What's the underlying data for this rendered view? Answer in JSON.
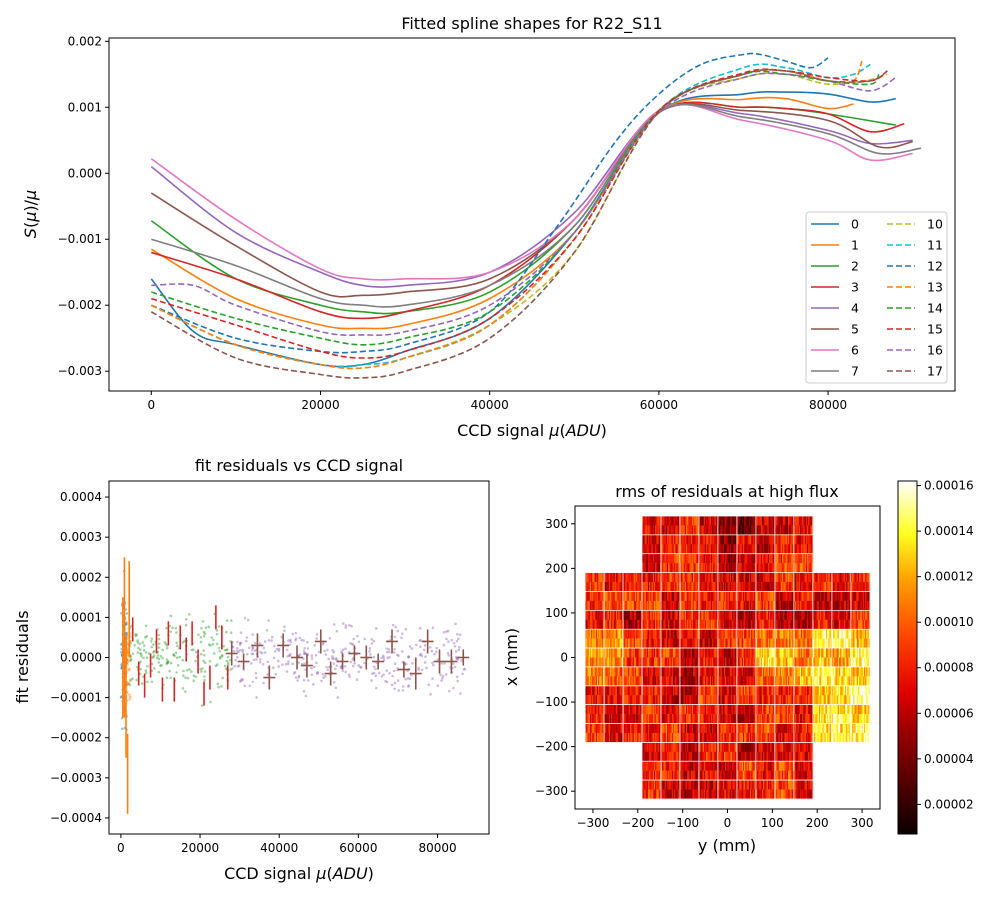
{
  "chart_data": [
    {
      "type": "line",
      "title": "Fitted spline shapes for R22_S11",
      "xlabel": "CCD signal μ(ADU)",
      "ylabel": "S(μ)/μ",
      "xlim": [
        -5000,
        95000
      ],
      "ylim": [
        -0.0033,
        0.00205
      ],
      "x_ticks": [
        0,
        20000,
        40000,
        60000,
        80000
      ],
      "y_ticks": [
        -0.003,
        -0.002,
        -0.001,
        0.0,
        0.001,
        0.002
      ],
      "x_tick_labels": [
        "0",
        "20000",
        "40000",
        "60000",
        "80000"
      ],
      "y_tick_labels": [
        "−0.003",
        "−0.002",
        "−0.001",
        "0.000",
        "0.001",
        "0.002"
      ],
      "grid": false,
      "legend_position": "lower-right",
      "legend_columns": 2,
      "series": [
        {
          "name": "0",
          "color": "#1f77b4",
          "dash": "solid",
          "x": [
            0,
            5000,
            10000,
            20000,
            25000,
            30000,
            40000,
            50000,
            60000,
            70000,
            75000,
            80000,
            85000,
            88000
          ],
          "y": [
            -0.0016,
            -0.0024,
            -0.0026,
            -0.0029,
            -0.0029,
            -0.0027,
            -0.0022,
            -0.0009,
            0.00092,
            0.0012,
            0.00123,
            0.0012,
            0.00108,
            0.00113
          ]
        },
        {
          "name": "1",
          "color": "#ff7f0e",
          "dash": "solid",
          "x": [
            0,
            10000,
            20000,
            25000,
            30000,
            40000,
            50000,
            60000,
            70000,
            75000,
            80000,
            83000
          ],
          "y": [
            -0.00115,
            -0.0019,
            -0.0023,
            -0.00235,
            -0.0023,
            -0.0019,
            -0.0009,
            0.00092,
            0.00112,
            0.00113,
            0.00098,
            0.00105
          ]
        },
        {
          "name": "2",
          "color": "#2ca02c",
          "dash": "solid",
          "x": [
            0,
            10000,
            20000,
            25000,
            30000,
            40000,
            50000,
            60000,
            70000,
            75000,
            80000,
            88000
          ],
          "y": [
            -0.00072,
            -0.0016,
            -0.002,
            -0.0021,
            -0.0021,
            -0.0018,
            -0.0008,
            0.00092,
            0.001,
            0.00098,
            0.0009,
            0.00073
          ]
        },
        {
          "name": "3",
          "color": "#d62728",
          "dash": "solid",
          "x": [
            0,
            10000,
            20000,
            25000,
            30000,
            40000,
            50000,
            60000,
            70000,
            75000,
            80000,
            85000,
            89000
          ],
          "y": [
            -0.0012,
            -0.0016,
            -0.0021,
            -0.0022,
            -0.0021,
            -0.0017,
            -0.0007,
            0.00093,
            0.001,
            0.00098,
            0.0009,
            0.00063,
            0.00075
          ]
        },
        {
          "name": "4",
          "color": "#9467bd",
          "dash": "solid",
          "x": [
            0,
            10000,
            20000,
            25000,
            30000,
            40000,
            50000,
            60000,
            70000,
            80000,
            85000,
            90000
          ],
          "y": [
            0.0001,
            -0.0009,
            -0.0015,
            -0.0017,
            -0.0017,
            -0.0015,
            -0.0006,
            0.00093,
            0.0009,
            0.00065,
            0.00045,
            0.0005
          ]
        },
        {
          "name": "5",
          "color": "#8c564b",
          "dash": "solid",
          "x": [
            0,
            10000,
            20000,
            25000,
            30000,
            40000,
            50000,
            60000,
            70000,
            80000,
            86000,
            90000
          ],
          "y": [
            -0.0003,
            -0.0011,
            -0.0018,
            -0.00185,
            -0.0018,
            -0.0016,
            -0.0007,
            0.00092,
            0.00095,
            0.0008,
            0.0004,
            0.00048
          ]
        },
        {
          "name": "6",
          "color": "#e377c2",
          "dash": "solid",
          "x": [
            0,
            10000,
            20000,
            25000,
            30000,
            40000,
            50000,
            60000,
            70000,
            80000,
            85000,
            90000
          ],
          "y": [
            0.00022,
            -0.0007,
            -0.00145,
            -0.0016,
            -0.0016,
            -0.0015,
            -0.0007,
            0.00095,
            0.0008,
            0.0005,
            0.0002,
            0.0003
          ]
        },
        {
          "name": "7",
          "color": "#7f7f7f",
          "dash": "solid",
          "x": [
            0,
            10000,
            20000,
            25000,
            30000,
            40000,
            50000,
            60000,
            70000,
            80000,
            86000,
            91000
          ],
          "y": [
            -0.001,
            -0.0014,
            -0.0019,
            -0.002,
            -0.002,
            -0.0017,
            -0.0008,
            0.00093,
            0.00085,
            0.0006,
            0.0003,
            0.00038
          ]
        },
        {
          "name": "10",
          "color": "#bcbd22",
          "dash": "dashed",
          "x": [
            0,
            10000,
            20000,
            25000,
            30000,
            40000,
            50000,
            60000,
            70000,
            75000,
            80000,
            85000,
            87000
          ],
          "y": [
            -0.002,
            -0.0026,
            -0.0029,
            -0.00295,
            -0.0028,
            -0.0023,
            -0.0012,
            0.00095,
            0.00145,
            0.0015,
            0.00135,
            0.00142,
            0.0015
          ]
        },
        {
          "name": "11",
          "color": "#17becf",
          "dash": "dashed",
          "x": [
            0,
            10000,
            20000,
            25000,
            30000,
            40000,
            50000,
            60000,
            70000,
            75000,
            80000,
            83000,
            85000
          ],
          "y": [
            -0.002,
            -0.0026,
            -0.0029,
            -0.0029,
            -0.0028,
            -0.0023,
            -0.001,
            0.00095,
            0.0016,
            0.0016,
            0.00145,
            0.0015,
            0.00165
          ]
        },
        {
          "name": "12",
          "color": "#1f77b4",
          "dash": "dashed",
          "x": [
            0,
            10000,
            20000,
            25000,
            30000,
            40000,
            48000,
            55000,
            60000,
            65000,
            70000,
            72000,
            75000,
            78000,
            80000
          ],
          "y": [
            -0.002,
            -0.0025,
            -0.0027,
            -0.0027,
            -0.0026,
            -0.0021,
            -0.0008,
            0.0005,
            0.0012,
            0.00165,
            0.0018,
            0.0018,
            0.0017,
            0.0016,
            0.00175
          ]
        },
        {
          "name": "13",
          "color": "#ff7f0e",
          "dash": "dashed",
          "x": [
            0,
            10000,
            20000,
            25000,
            30000,
            40000,
            50000,
            60000,
            70000,
            75000,
            80000,
            83000,
            84000
          ],
          "y": [
            -0.002,
            -0.0026,
            -0.0029,
            -0.00295,
            -0.0028,
            -0.0023,
            -0.001,
            0.00095,
            0.0015,
            0.00155,
            0.0014,
            0.0014,
            0.0017
          ]
        },
        {
          "name": "14",
          "color": "#2ca02c",
          "dash": "dashed",
          "x": [
            0,
            10000,
            20000,
            25000,
            30000,
            40000,
            50000,
            60000,
            70000,
            75000,
            80000,
            85000,
            86000
          ],
          "y": [
            -0.0018,
            -0.0022,
            -0.0025,
            -0.0026,
            -0.0025,
            -0.0021,
            -0.0009,
            0.00095,
            0.0015,
            0.0015,
            0.0014,
            0.00135,
            0.0015
          ]
        },
        {
          "name": "15",
          "color": "#d62728",
          "dash": "dashed",
          "x": [
            0,
            10000,
            20000,
            25000,
            30000,
            40000,
            50000,
            60000,
            70000,
            75000,
            80000,
            85000,
            87000
          ],
          "y": [
            -0.0019,
            -0.0023,
            -0.0027,
            -0.0028,
            -0.0027,
            -0.0022,
            -0.001,
            0.00095,
            0.00152,
            0.00155,
            0.00145,
            0.0014,
            0.00155
          ]
        },
        {
          "name": "16",
          "color": "#9467bd",
          "dash": "dashed",
          "x": [
            0,
            5000,
            10000,
            20000,
            25000,
            30000,
            40000,
            50000,
            60000,
            70000,
            75000,
            80000,
            85000,
            88000
          ],
          "y": [
            -0.0017,
            -0.0017,
            -0.002,
            -0.0024,
            -0.00245,
            -0.0024,
            -0.002,
            -0.0009,
            0.00092,
            0.00145,
            0.0015,
            0.0014,
            0.00125,
            0.00145
          ]
        },
        {
          "name": "17",
          "color": "#8c564b",
          "dash": "dashed",
          "x": [
            0,
            10000,
            20000,
            25000,
            30000,
            40000,
            50000,
            60000,
            70000,
            75000,
            80000,
            85000,
            87000
          ],
          "y": [
            -0.0021,
            -0.0028,
            -0.00305,
            -0.0031,
            -0.003,
            -0.0025,
            -0.0012,
            0.00093,
            0.0015,
            0.00155,
            0.0014,
            0.0014,
            0.00155
          ]
        }
      ]
    },
    {
      "type": "scatter",
      "title": "fit residuals vs CCD signal",
      "xlabel": "CCD signal μ(ADU)",
      "ylabel": "fit residuals",
      "xlim": [
        -3000,
        93000
      ],
      "ylim": [
        -0.00044,
        0.00044
      ],
      "x_ticks": [
        0,
        20000,
        40000,
        60000,
        80000
      ],
      "y_ticks": [
        -0.0004,
        -0.0003,
        -0.0002,
        -0.0001,
        0.0,
        0.0001,
        0.0002,
        0.0003,
        0.0004
      ],
      "x_tick_labels": [
        "0",
        "20000",
        "40000",
        "60000",
        "80000"
      ],
      "y_tick_labels": [
        "−0.0004",
        "−0.0003",
        "−0.0002",
        "−0.0001",
        "0.0000",
        "0.0001",
        "0.0002",
        "0.0003",
        "0.0004"
      ],
      "grid": false,
      "scatter_groups": [
        {
          "color": "#1f77b4",
          "x_range": [
            0,
            1500
          ],
          "y_sigma": 0.00021,
          "count": 110
        },
        {
          "color": "#ff7f0e",
          "x_range": [
            800,
            2500
          ],
          "y_sigma": 0.00012,
          "count": 60
        },
        {
          "color": "#2ca02c",
          "x_range": [
            2000,
            28000
          ],
          "y_sigma": 0.00011,
          "count": 210
        },
        {
          "color": "#9467bd",
          "x_range": [
            28000,
            87000
          ],
          "y_sigma": 0.0001,
          "count": 380
        }
      ],
      "binned_means": [
        {
          "color": "#d62728",
          "x": [
            3000,
            4500,
            6000,
            7500,
            9000,
            10500,
            12000,
            13500,
            15000,
            16500,
            18000,
            19500,
            21000,
            22500,
            24000,
            25500,
            27000
          ],
          "y": [
            7e-05,
            -4e-05,
            -7e-05,
            -2e-05,
            4e-05,
            -8e-05,
            6e-05,
            -8e-05,
            5e-05,
            2e-05,
            6e-05,
            -1e-05,
            -9e-05,
            -5e-05,
            0.0001,
            5e-05,
            -5e-05
          ],
          "yerr": [
            3e-05,
            3e-05,
            3e-05,
            3e-05,
            3e-05,
            3e-05,
            3e-05,
            3e-05,
            3e-05,
            3e-05,
            3e-05,
            3e-05,
            3e-05,
            3e-05,
            3e-05,
            3e-05,
            3e-05
          ]
        },
        {
          "color": "#8c564b",
          "x": [
            28000,
            31000,
            34500,
            37500,
            41000,
            44500,
            47000,
            50500,
            53000,
            56000,
            59000,
            62000,
            65000,
            68500,
            71500,
            74500,
            77500,
            80500,
            83500,
            86500
          ],
          "y": [
            1e-05,
            -1e-05,
            3e-05,
            -5e-05,
            3e-05,
            0.0,
            -2e-05,
            4e-05,
            -4e-05,
            -1e-05,
            1e-05,
            0.0,
            -1e-05,
            4e-05,
            -3e-05,
            -4e-05,
            4e-05,
            -1e-05,
            -1e-05,
            0.0
          ],
          "yerr": [
            3e-05,
            2e-05,
            3e-05,
            3e-05,
            3e-05,
            3e-05,
            3e-05,
            3e-05,
            3e-05,
            2e-05,
            2e-05,
            3e-05,
            2e-05,
            3e-05,
            2e-05,
            4e-05,
            3e-05,
            3e-05,
            3e-05,
            2e-05
          ],
          "xerr": 1500
        },
        {
          "color": "#ff7f0e",
          "x": [
            500,
            900,
            1300,
            1700,
            2100
          ],
          "y": [
            0.0,
            5e-05,
            -0.0001,
            -0.00029,
            0.00012
          ],
          "yerr": [
            0.00015,
            0.0002,
            0.00015,
            0.0001,
            0.00012
          ]
        }
      ]
    },
    {
      "type": "heatmap",
      "title": "rms of residuals at high flux",
      "xlabel": "y (mm)",
      "ylabel": "x (mm)",
      "xlim": [
        -340,
        340
      ],
      "ylim": [
        -340,
        340
      ],
      "x_ticks": [
        -300,
        -200,
        -100,
        0,
        100,
        200,
        300
      ],
      "y_ticks": [
        -300,
        -200,
        -100,
        0,
        100,
        200,
        300
      ],
      "x_tick_labels": [
        "−300",
        "−200",
        "−100",
        "0",
        "100",
        "200",
        "300"
      ],
      "y_tick_labels": [
        "−300",
        "−200",
        "−100",
        "0",
        "100",
        "200",
        "300"
      ],
      "colormap": "hot",
      "colorbar_range": [
        7e-06,
        0.000162
      ],
      "colorbar_ticks": [
        2e-05,
        4e-05,
        6e-05,
        8e-05,
        0.0001,
        0.00012,
        0.00014,
        0.00016
      ],
      "colorbar_tick_labels": [
        "0.00002",
        "0.00004",
        "0.00006",
        "0.00008",
        "0.00010",
        "0.00012",
        "0.00014",
        "0.00016"
      ],
      "layout": "LSST focal plane 5x5 rafts without corners, each 3x3 CCDs of 16x2 amplifiers"
    }
  ]
}
